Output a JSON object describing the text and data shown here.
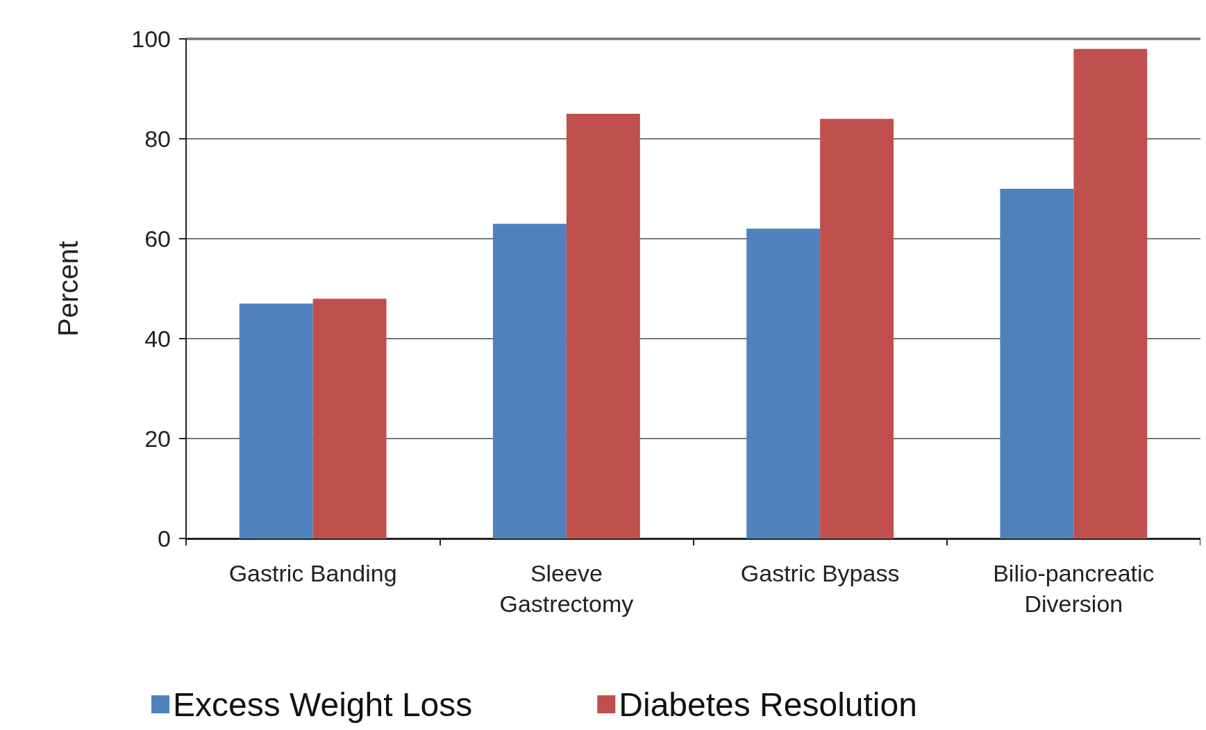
{
  "chart_data": {
    "type": "bar",
    "ylabel": "Percent",
    "categories": [
      "Gastric Banding",
      "Sleeve Gastrectomy",
      "Gastric Bypass",
      "Bilio-pancreatic Diversion"
    ],
    "series": [
      {
        "name": "Excess Weight Loss",
        "color": "#4f81bd",
        "values": [
          47,
          63,
          62,
          70
        ]
      },
      {
        "name": "Diabetes Resolution",
        "color": "#c0504d",
        "values": [
          48,
          85,
          84,
          98
        ]
      }
    ],
    "ylim": [
      0,
      100
    ],
    "yticks": [
      0,
      20,
      40,
      60,
      80,
      100
    ],
    "grid": "y",
    "legend": "bottom"
  }
}
